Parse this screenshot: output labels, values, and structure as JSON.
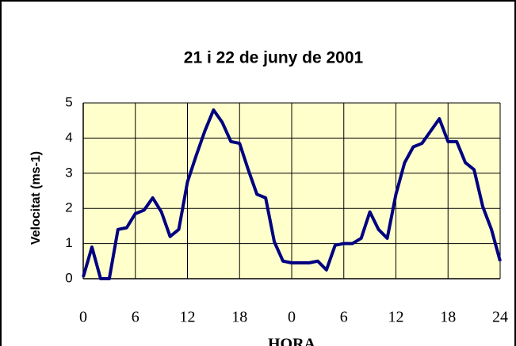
{
  "chart_data": {
    "type": "line",
    "title": "21 i 22 de juny de 2001",
    "y_label": "Velocitat (ms-1)",
    "x_label": "HORA",
    "x": [
      0,
      1,
      2,
      3,
      4,
      5,
      6,
      7,
      8,
      9,
      10,
      11,
      12,
      13,
      14,
      15,
      16,
      17,
      18,
      19,
      20,
      21,
      22,
      23,
      24,
      25,
      26,
      27,
      28,
      29,
      30,
      31,
      32,
      33,
      34,
      35,
      36,
      37,
      38,
      39,
      40,
      41,
      42,
      43,
      44,
      45,
      46,
      47,
      48
    ],
    "series": [
      {
        "name": "Velocitat",
        "color": "#000080",
        "values": [
          0.05,
          0.9,
          0,
          0,
          1.4,
          1.45,
          1.85,
          1.95,
          2.3,
          1.9,
          1.2,
          1.4,
          2.75,
          3.5,
          4.2,
          4.8,
          4.45,
          3.9,
          3.85,
          3.1,
          2.4,
          2.3,
          1.05,
          0.5,
          0.45,
          0.45,
          0.45,
          0.5,
          0.25,
          0.95,
          1.0,
          1.0,
          1.15,
          1.9,
          1.4,
          1.15,
          2.4,
          3.3,
          3.75,
          3.85,
          4.2,
          4.55,
          3.9,
          3.9,
          3.3,
          3.1,
          2.05,
          1.4,
          0.5
        ]
      }
    ],
    "xlim": [
      0,
      48
    ],
    "xticks": [
      0,
      6,
      12,
      18,
      {
        "value": 24,
        "label": "0"
      },
      {
        "value": 30,
        "label": "6"
      },
      {
        "value": 36,
        "label": "12"
      },
      {
        "value": 42,
        "label": "18"
      },
      {
        "value": 48,
        "label": "24"
      }
    ],
    "ylim": [
      0,
      5
    ],
    "yticks": [
      0,
      1,
      2,
      3,
      4,
      5
    ],
    "grid": true,
    "plot_background": "#ffffcc"
  }
}
